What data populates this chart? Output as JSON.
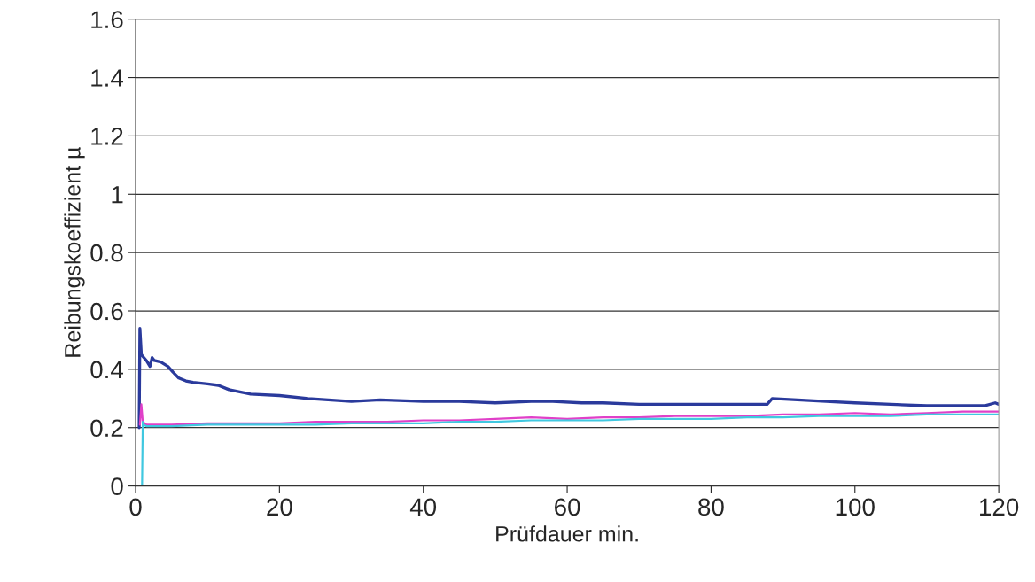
{
  "chart_data": {
    "type": "line",
    "xlabel": "Prüfdauer min.",
    "ylabel": "Reibungskoeffizient µ",
    "xlim": [
      0,
      120
    ],
    "xticks": [
      0,
      20,
      40,
      60,
      80,
      100,
      120
    ],
    "ylim": [
      0,
      1.6
    ],
    "yticks": [
      0,
      0.2,
      0.4,
      0.6,
      0.8,
      1,
      1.2,
      1.4,
      1.6
    ],
    "grid": "y",
    "legend": false,
    "marker": "none",
    "line_style": "solid",
    "series": [
      {
        "color": "#2a3a9c",
        "x": [
          0.5,
          0.6,
          0.8,
          1.5,
          2,
          2.3,
          2.6,
          3.5,
          4.5,
          5.2,
          6,
          7,
          8,
          10,
          11.5,
          13,
          16,
          20,
          24,
          30,
          34,
          40,
          45,
          50,
          55,
          58,
          62,
          65,
          70,
          75,
          80,
          85,
          87.8,
          88.5,
          92,
          96,
          100,
          105,
          110,
          115,
          118,
          119.5,
          120
        ],
        "values": [
          0.2,
          0.54,
          0.45,
          0.43,
          0.41,
          0.44,
          0.43,
          0.425,
          0.41,
          0.39,
          0.37,
          0.36,
          0.355,
          0.35,
          0.345,
          0.33,
          0.315,
          0.31,
          0.3,
          0.29,
          0.295,
          0.29,
          0.29,
          0.285,
          0.29,
          0.29,
          0.285,
          0.285,
          0.28,
          0.28,
          0.28,
          0.28,
          0.28,
          0.3,
          0.295,
          0.29,
          0.285,
          0.28,
          0.275,
          0.275,
          0.275,
          0.285,
          0.28
        ]
      },
      {
        "color": "#e040c8",
        "x": [
          0.6,
          0.8,
          1,
          1.5,
          2,
          5,
          10,
          15,
          20,
          25,
          30,
          35,
          40,
          45,
          50,
          55,
          60,
          65,
          70,
          75,
          80,
          85,
          90,
          95,
          100,
          105,
          110,
          115,
          120
        ],
        "values": [
          0.21,
          0.28,
          0.22,
          0.21,
          0.21,
          0.21,
          0.215,
          0.215,
          0.215,
          0.22,
          0.22,
          0.22,
          0.225,
          0.225,
          0.23,
          0.235,
          0.23,
          0.235,
          0.235,
          0.24,
          0.24,
          0.24,
          0.245,
          0.245,
          0.25,
          0.245,
          0.25,
          0.255,
          0.255
        ]
      },
      {
        "color": "#40c8e0",
        "x": [
          0.9,
          1.0,
          1.1,
          1.5,
          2,
          5,
          10,
          15,
          20,
          25,
          30,
          35,
          40,
          45,
          50,
          55,
          60,
          65,
          70,
          75,
          80,
          85,
          90,
          95,
          100,
          105,
          110,
          115,
          120
        ],
        "values": [
          0,
          0.22,
          0.21,
          0.205,
          0.205,
          0.205,
          0.21,
          0.21,
          0.21,
          0.21,
          0.215,
          0.215,
          0.215,
          0.22,
          0.22,
          0.225,
          0.225,
          0.225,
          0.23,
          0.23,
          0.23,
          0.235,
          0.235,
          0.24,
          0.24,
          0.24,
          0.245,
          0.245,
          0.245
        ]
      }
    ]
  }
}
